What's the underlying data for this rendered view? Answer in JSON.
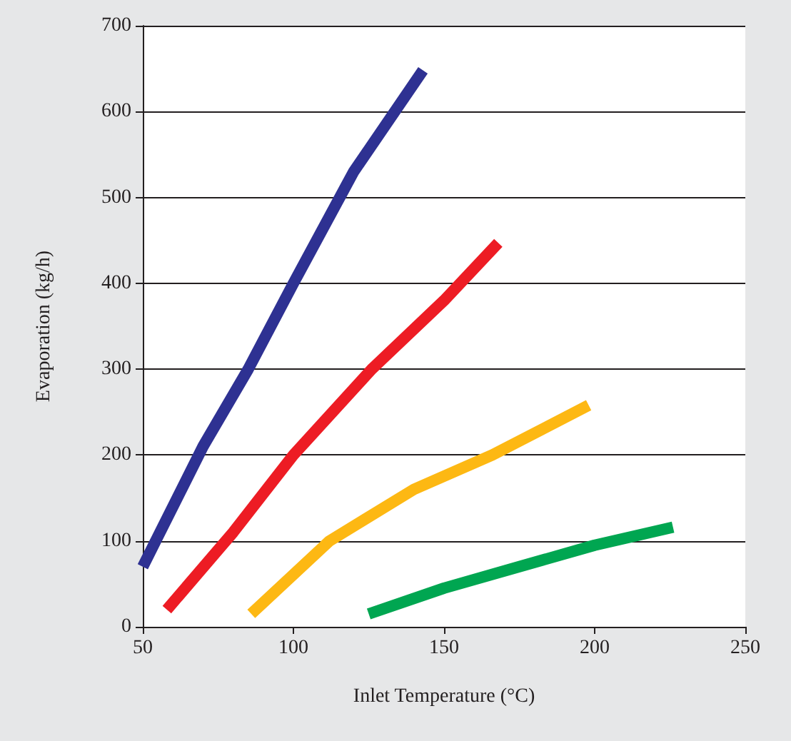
{
  "chart_data": {
    "type": "line",
    "xlabel": "Inlet Temperature (°C)",
    "ylabel": "Evaporation (kg/h)",
    "xlim": [
      50,
      250
    ],
    "xticks": [
      50,
      100,
      150,
      200,
      250
    ],
    "ylim": [
      0,
      700
    ],
    "yticks": [
      0,
      100,
      200,
      300,
      400,
      500,
      600,
      700
    ],
    "grid": "y",
    "marker": "none",
    "line_style": "solid",
    "series": [
      {
        "color": "#2e3192",
        "x": [
          50,
          70,
          85,
          100,
          120,
          143
        ],
        "values": [
          70,
          210,
          300,
          400,
          530,
          648
        ]
      },
      {
        "color": "#ed1c24",
        "x": [
          58,
          80,
          100,
          126,
          150,
          168
        ],
        "values": [
          20,
          110,
          200,
          300,
          380,
          447
        ]
      },
      {
        "color": "#fdb813",
        "x": [
          86,
          112,
          140,
          166,
          198
        ],
        "values": [
          15,
          100,
          160,
          200,
          258
        ]
      },
      {
        "color": "#00a651",
        "x": [
          125,
          150,
          175,
          200,
          226
        ],
        "values": [
          15,
          45,
          70,
          95,
          116
        ]
      }
    ]
  }
}
